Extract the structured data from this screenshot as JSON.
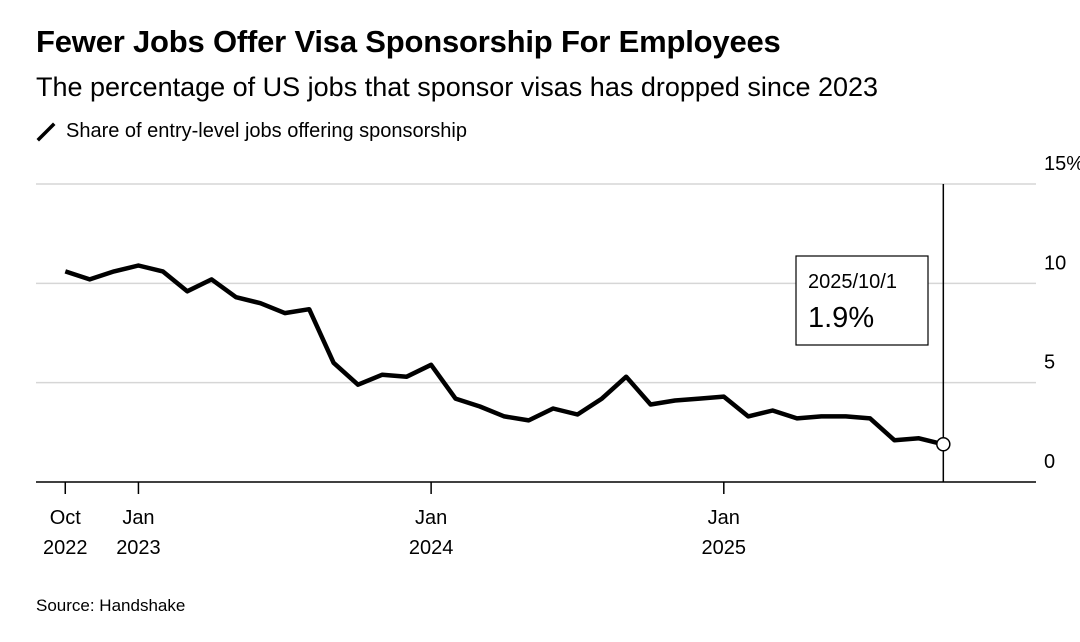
{
  "chart_data": {
    "type": "line",
    "title": "Fewer Jobs Offer Visa Sponsorship For Employees",
    "subtitle": "The percentage of US jobs that sponsor visas has dropped since 2023",
    "legend": "Share of entry-level jobs offering sponsorship",
    "source": "Source: Handshake",
    "ylim": [
      0,
      15
    ],
    "y_ticks": [
      "0",
      "5",
      "10",
      "15%"
    ],
    "y_tick_values": [
      0,
      5,
      10,
      15
    ],
    "x_ticks": [
      {
        "month": 0,
        "line1": "Oct",
        "line2": "2022"
      },
      {
        "month": 3,
        "line1": "Jan",
        "line2": "2023"
      },
      {
        "month": 15,
        "line1": "Jan",
        "line2": "2024"
      },
      {
        "month": 27,
        "line1": "Jan",
        "line2": "2025"
      }
    ],
    "x_range_months": [
      -1.2,
      39.8
    ],
    "series": [
      {
        "name": "Share of entry-level jobs offering sponsorship",
        "color": "#000000",
        "months": [
          0,
          1,
          2,
          3,
          4,
          5,
          6,
          7,
          8,
          9,
          10,
          11,
          12,
          13,
          14,
          15,
          16,
          17,
          18,
          19,
          20,
          21,
          22,
          23,
          24,
          25,
          26,
          27,
          28,
          29,
          30,
          31,
          32,
          33,
          34,
          35,
          36
        ],
        "values": [
          10.6,
          10.2,
          10.6,
          10.9,
          10.6,
          9.6,
          10.2,
          9.3,
          9.0,
          8.5,
          8.7,
          6.0,
          4.9,
          5.4,
          5.3,
          5.9,
          4.2,
          3.8,
          3.3,
          3.1,
          3.7,
          3.4,
          4.2,
          5.3,
          3.9,
          4.1,
          4.2,
          4.3,
          3.3,
          3.6,
          3.2,
          3.3,
          3.3,
          3.2,
          2.1,
          2.2,
          1.9
        ]
      }
    ],
    "annotation": {
      "month": 36,
      "date": "2025/10/1",
      "value_label": "1.9%"
    }
  }
}
